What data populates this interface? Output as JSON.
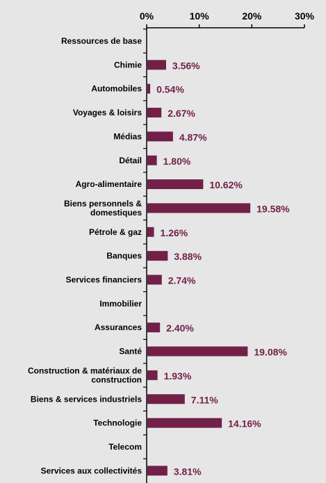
{
  "chart_data": {
    "type": "bar",
    "orientation": "horizontal",
    "title": "",
    "xlabel": "",
    "ylabel": "",
    "xlim": [
      0,
      30
    ],
    "x_ticks": [
      "0%",
      "10%",
      "20%",
      "30%"
    ],
    "grid": false,
    "legend": "none",
    "categories": [
      [
        "Ressources de base"
      ],
      [
        "Chimie"
      ],
      [
        "Automobiles"
      ],
      [
        "Voyages & loisirs"
      ],
      [
        "Médias"
      ],
      [
        "Détail"
      ],
      [
        "Agro-alimentaire"
      ],
      [
        "Biens personnels &",
        "domestiques"
      ],
      [
        "Pétrole & gaz"
      ],
      [
        "Banques"
      ],
      [
        "Services financiers"
      ],
      [
        "Immobilier"
      ],
      [
        "Assurances"
      ],
      [
        "Santé"
      ],
      [
        "Construction & matériaux de",
        "construction"
      ],
      [
        "Biens & services industriels"
      ],
      [
        "Technologie"
      ],
      [
        "Telecom"
      ],
      [
        "Services aux collectivités"
      ]
    ],
    "values": [
      null,
      3.56,
      0.54,
      2.67,
      4.87,
      1.8,
      10.62,
      19.58,
      1.26,
      3.88,
      2.74,
      null,
      2.4,
      19.08,
      1.93,
      7.11,
      14.16,
      null,
      3.81
    ],
    "data_labels": [
      "",
      "3.56%",
      "0.54%",
      "2.67%",
      "4.87%",
      "1.80%",
      "10.62%",
      "19.58%",
      "1.26%",
      "3.88%",
      "2.74%",
      "",
      "2.40%",
      "19.08%",
      "1.93%",
      "7.11%",
      "14.16%",
      "",
      "3.81%"
    ],
    "colors": {
      "bar": "#722048",
      "label": "#722048",
      "axis": "#000000",
      "background": "#e6e6e6"
    }
  }
}
